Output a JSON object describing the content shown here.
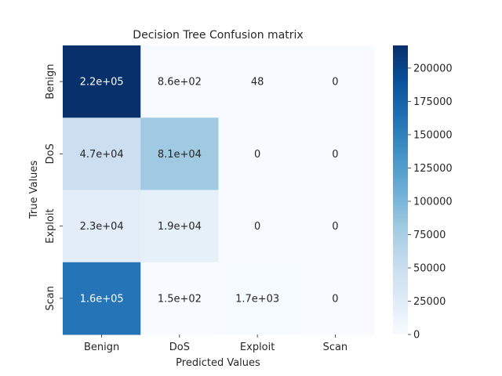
{
  "chart_data": {
    "type": "heatmap",
    "title": "Decision Tree Confusion matrix",
    "xlabel": "Predicted Values",
    "ylabel": "True Values",
    "x_categories": [
      "Benign",
      "DoS",
      "Exploit",
      "Scan"
    ],
    "y_categories": [
      "Benign",
      "DoS",
      "Exploit",
      "Scan"
    ],
    "values": [
      [
        217000,
        860,
        48,
        0
      ],
      [
        47000,
        81000,
        0,
        0
      ],
      [
        23000,
        19000,
        0,
        0
      ],
      [
        160000,
        150,
        1700,
        0
      ]
    ],
    "annotations": [
      [
        "2.2e+05",
        "8.6e+02",
        "48",
        "0"
      ],
      [
        "4.7e+04",
        "8.1e+04",
        "0",
        "0"
      ],
      [
        "2.3e+04",
        "1.9e+04",
        "0",
        "0"
      ],
      [
        "1.6e+05",
        "1.5e+02",
        "1.7e+03",
        "0"
      ]
    ],
    "colormap": "Blues",
    "colormap_stops": [
      "#f7fbff",
      "#deebf7",
      "#c6dbef",
      "#9ecae1",
      "#6baed6",
      "#4292c6",
      "#2171b5",
      "#08519c",
      "#08306b"
    ],
    "colorbar": {
      "range": [
        0,
        217000
      ],
      "ticks": [
        0,
        25000,
        50000,
        75000,
        100000,
        125000,
        150000,
        175000,
        200000
      ],
      "tick_labels": [
        "0",
        "25000",
        "50000",
        "75000",
        "100000",
        "125000",
        "150000",
        "175000",
        "200000"
      ]
    }
  }
}
